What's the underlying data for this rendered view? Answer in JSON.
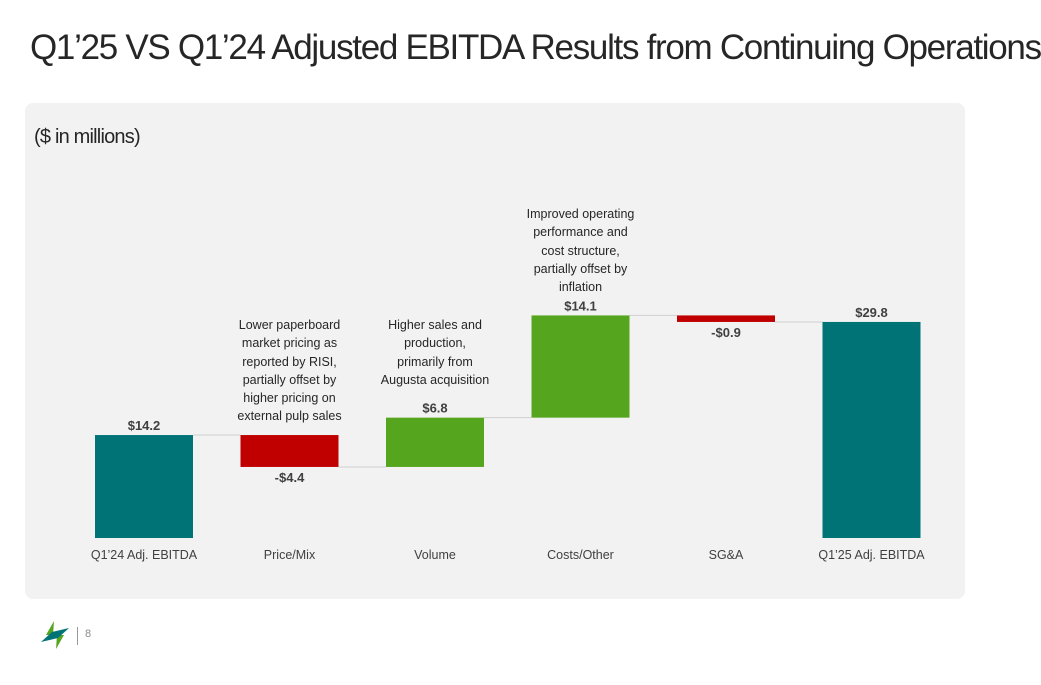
{
  "title": "Q1’25 VS Q1’24 Adjusted EBITDA Results from Continuing  Operations",
  "units_label": "($ in millions)",
  "page_number": "8",
  "colors": {
    "total": "#007377",
    "increase": "#56a51f",
    "decrease": "#c00000",
    "panel": "#f2f2f2"
  },
  "chart_data": {
    "type": "bar",
    "subtype": "waterfall",
    "categories": [
      "Q1’24 Adj. EBITDA",
      "Price/Mix",
      "Volume",
      "Costs/Other",
      "SG&A",
      "Q1’25 Adj. EBITDA"
    ],
    "values": [
      14.2,
      -4.4,
      6.8,
      14.1,
      -0.9,
      29.8
    ],
    "kinds": [
      "total",
      "decrease",
      "increase",
      "increase",
      "decrease",
      "total"
    ],
    "value_labels": [
      "$14.2",
      "-$4.4",
      "$6.8",
      "$14.1",
      "-$0.9",
      "$29.8"
    ],
    "annotations": [
      "",
      "Lower paperboard market  pricing as reported by RISI, partially offset by higher pricing on external pulp sales",
      "Higher sales and production, primarily from Augusta acquisition",
      "Improved operating performance and cost structure, partially offset by inflation",
      "",
      ""
    ],
    "ylabel": "",
    "ylim": [
      0,
      30
    ],
    "grid": false,
    "legend": "none",
    "connectors": true
  }
}
